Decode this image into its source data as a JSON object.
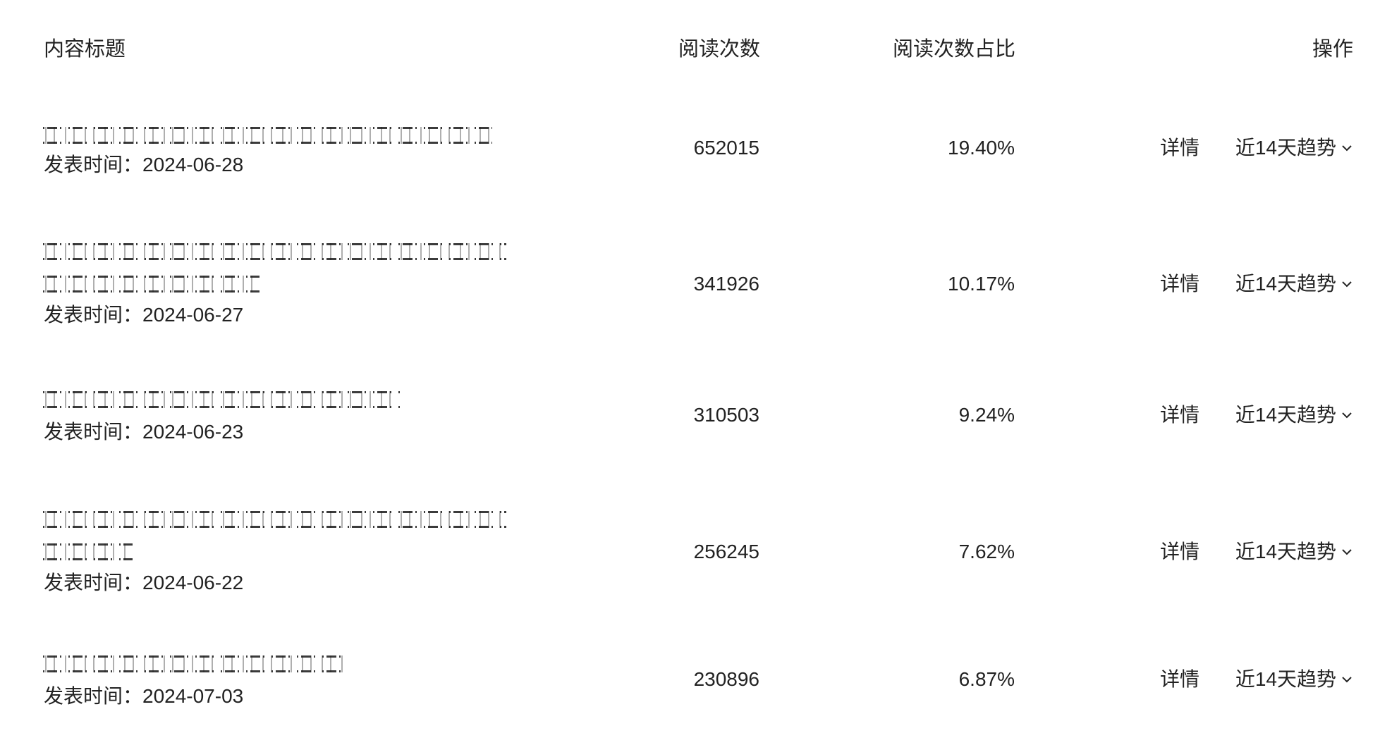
{
  "header": {
    "title_col": "内容标题",
    "reads_col": "阅读次数",
    "share_col": "阅读次数占比",
    "ops_col": "操作"
  },
  "rows": [
    {
      "title": "[redacted title]",
      "pub_label": "发表时间：2024-06-28",
      "reads": "652015",
      "share": "19.40%",
      "detail": "详情",
      "trend": "近14天趋势"
    },
    {
      "title": "[redacted title]",
      "pub_label": "发表时间：2024-06-27",
      "reads": "341926",
      "share": "10.17%",
      "detail": "详情",
      "trend": "近14天趋势"
    },
    {
      "title": "[redacted title]",
      "pub_label": "发表时间：2024-06-23",
      "reads": "310503",
      "share": "9.24%",
      "detail": "详情",
      "trend": "近14天趋势"
    },
    {
      "title": "[redacted title]",
      "pub_label": "发表时间：2024-06-22",
      "reads": "256245",
      "share": "7.62%",
      "detail": "详情",
      "trend": "近14天趋势"
    },
    {
      "title": "[redacted title]",
      "pub_label": "发表时间：2024-07-03",
      "reads": "230896",
      "share": "6.87%",
      "detail": "详情",
      "trend": "近14天趋势"
    }
  ],
  "icons": {
    "trend_dropdown": "chevron-down-icon"
  }
}
